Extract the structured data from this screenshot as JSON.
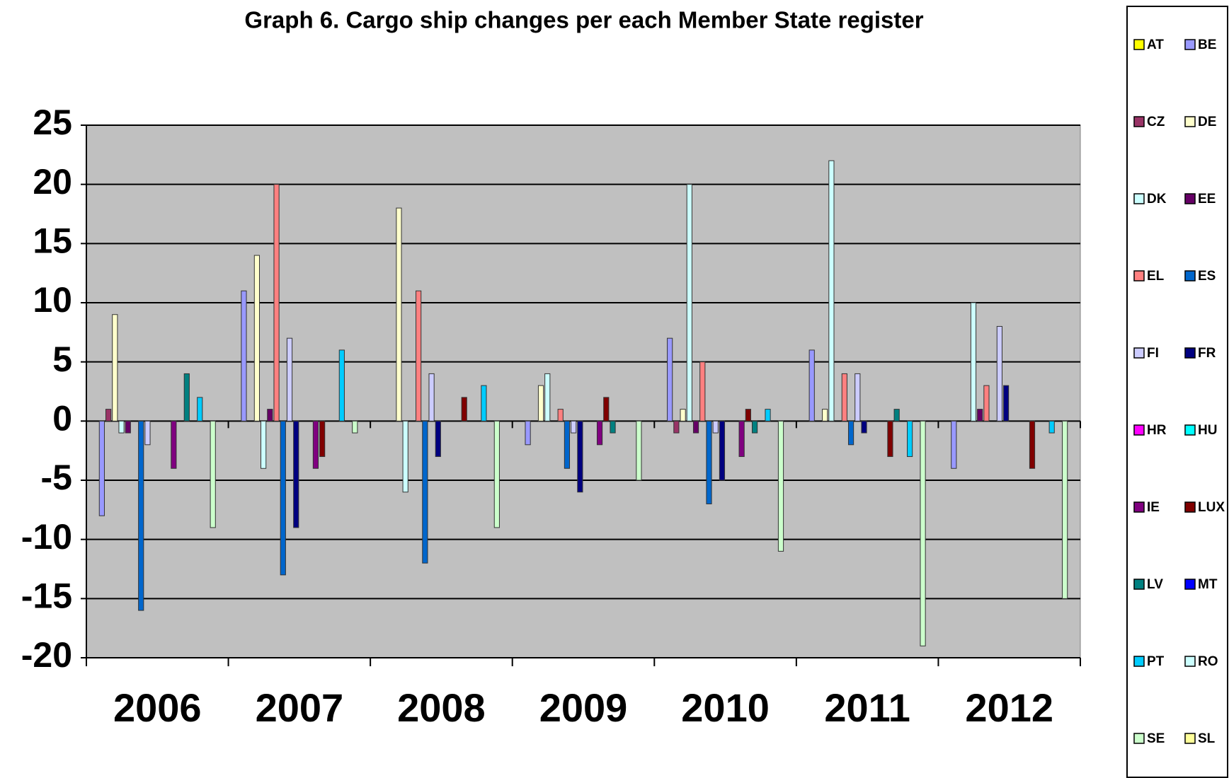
{
  "chart_data": {
    "type": "bar",
    "title": "Graph 6. Cargo ship changes per each Member State register",
    "categories": [
      "2006",
      "2007",
      "2008",
      "2009",
      "2010",
      "2011",
      "2012"
    ],
    "ylim": [
      -20,
      25
    ],
    "yticks": [
      -20,
      -15,
      -10,
      -5,
      0,
      5,
      10,
      15,
      20,
      25
    ],
    "grid": true,
    "legend": "right",
    "series": [
      {
        "name": "AT",
        "color": "#ffff00",
        "values": [
          0,
          0,
          0,
          0,
          0,
          0,
          0
        ]
      },
      {
        "name": "BE",
        "color": "#9999ff",
        "values": [
          -8,
          11,
          0,
          -2,
          7,
          6,
          -4
        ]
      },
      {
        "name": "CZ",
        "color": "#993366",
        "values": [
          1,
          0,
          0,
          0,
          -1,
          0,
          0
        ]
      },
      {
        "name": "DE",
        "color": "#ffffcc",
        "values": [
          9,
          14,
          18,
          3,
          1,
          1,
          0
        ]
      },
      {
        "name": "DK",
        "color": "#ccffff",
        "values": [
          -1,
          -4,
          -6,
          4,
          20,
          22,
          10
        ]
      },
      {
        "name": "EE",
        "color": "#660066",
        "values": [
          -1,
          1,
          0,
          0,
          -1,
          0,
          1
        ]
      },
      {
        "name": "EL",
        "color": "#ff8080",
        "values": [
          0,
          20,
          11,
          1,
          5,
          4,
          3
        ]
      },
      {
        "name": "ES",
        "color": "#0066cc",
        "values": [
          -16,
          -13,
          -12,
          -4,
          -7,
          -2,
          0
        ]
      },
      {
        "name": "FI",
        "color": "#ccccff",
        "values": [
          -2,
          7,
          4,
          -1,
          -1,
          4,
          8
        ]
      },
      {
        "name": "FR",
        "color": "#000080",
        "values": [
          0,
          -9,
          -3,
          -6,
          -5,
          -1,
          3
        ]
      },
      {
        "name": "HR",
        "color": "#ff00ff",
        "values": [
          0,
          0,
          0,
          0,
          0,
          0,
          0
        ]
      },
      {
        "name": "HU",
        "color": "#00ffff",
        "values": [
          0,
          0,
          0,
          0,
          0,
          0,
          0
        ]
      },
      {
        "name": "IE",
        "color": "#800080",
        "values": [
          -4,
          -4,
          0,
          -2,
          -3,
          0,
          0
        ]
      },
      {
        "name": "LUX",
        "color": "#800000",
        "values": [
          0,
          -3,
          2,
          2,
          1,
          -3,
          -4
        ]
      },
      {
        "name": "LV",
        "color": "#008080",
        "values": [
          4,
          0,
          0,
          -1,
          -1,
          1,
          0
        ]
      },
      {
        "name": "MT",
        "color": "#0000ff",
        "values": [
          0,
          0,
          0,
          0,
          0,
          0,
          0
        ]
      },
      {
        "name": "PT",
        "color": "#00ccff",
        "values": [
          2,
          6,
          3,
          0,
          1,
          -3,
          -1
        ]
      },
      {
        "name": "RO",
        "color": "#ccffff",
        "values": [
          0,
          0,
          0,
          0,
          0,
          0,
          0
        ]
      },
      {
        "name": "SE",
        "color": "#ccffcc",
        "values": [
          -9,
          -1,
          -9,
          -5,
          -11,
          -19,
          -15
        ]
      },
      {
        "name": "SL",
        "color": "#ffff99",
        "values": [
          0,
          0,
          0,
          0,
          0,
          0,
          0
        ]
      }
    ]
  }
}
